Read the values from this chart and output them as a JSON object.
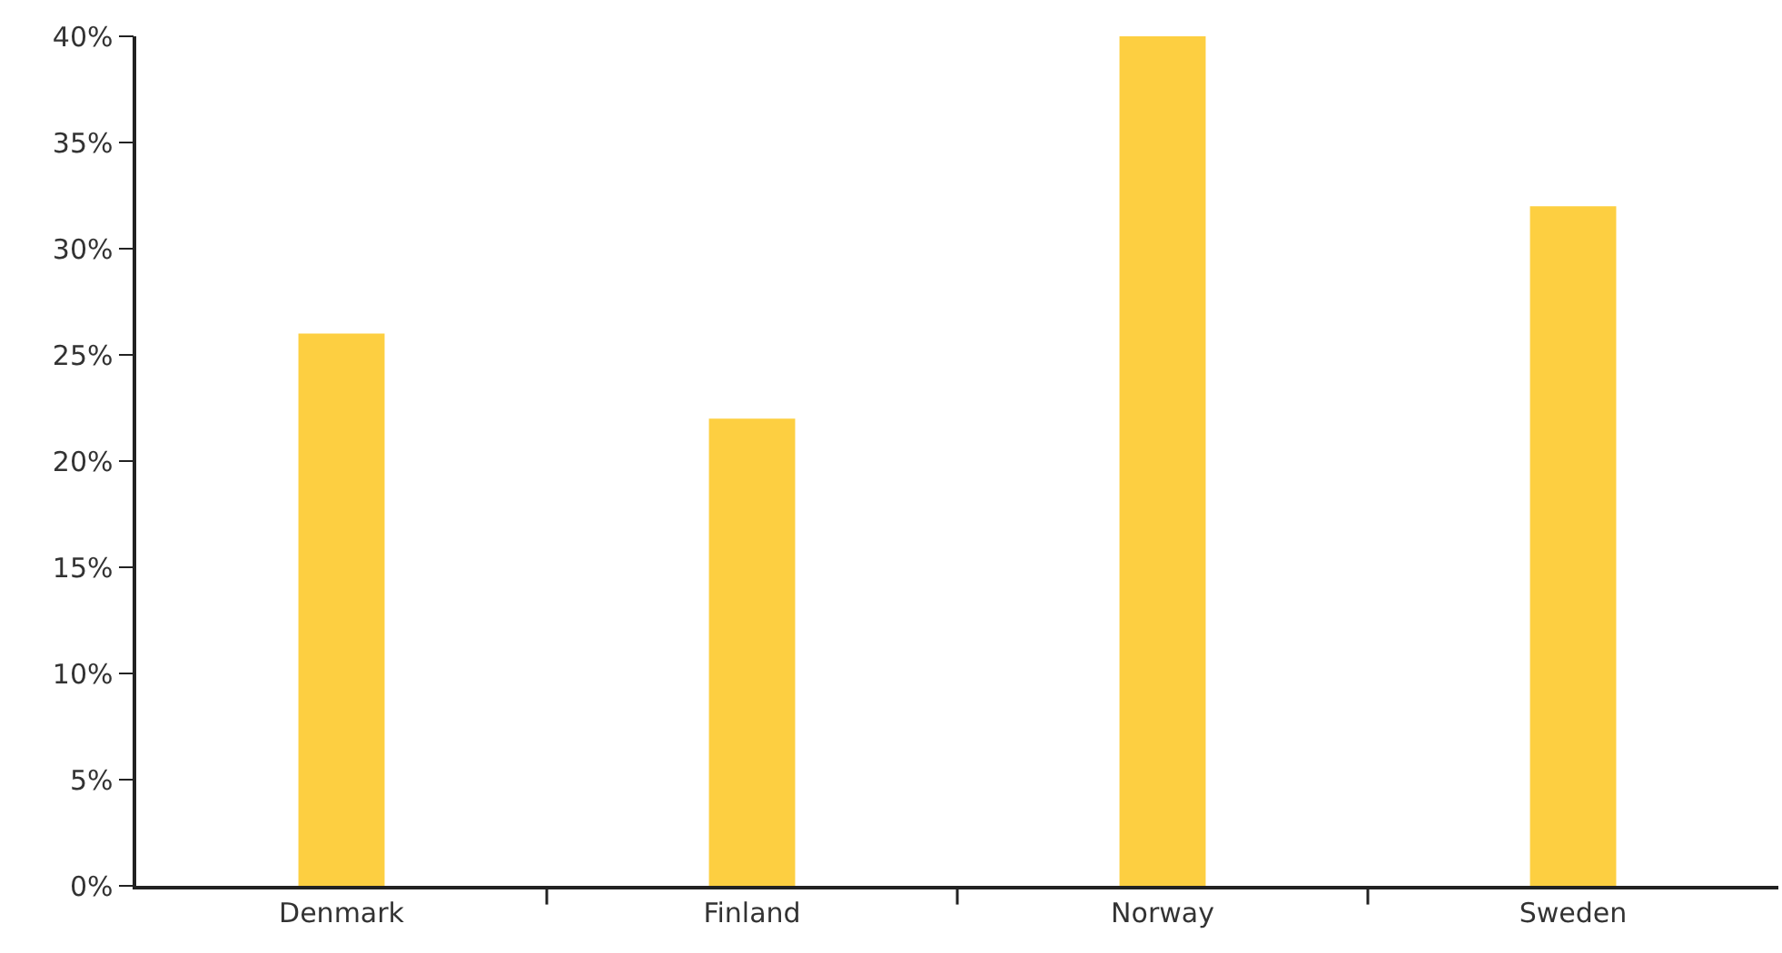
{
  "chart_data": {
    "type": "bar",
    "categories": [
      "Denmark",
      "Finland",
      "Norway",
      "Sweden"
    ],
    "values": [
      26,
      22,
      40,
      32
    ],
    "color": "#fdcf41",
    "ylim": [
      0,
      40
    ],
    "yticks": [
      {
        "value": 0,
        "label": "0%"
      },
      {
        "value": 5,
        "label": "5%"
      },
      {
        "value": 10,
        "label": "10%"
      },
      {
        "value": 15,
        "label": "15%"
      },
      {
        "value": 20,
        "label": "20%"
      },
      {
        "value": 25,
        "label": "25%"
      },
      {
        "value": 30,
        "label": "30%"
      },
      {
        "value": 35,
        "label": "35%"
      },
      {
        "value": 40,
        "label": "40%"
      }
    ],
    "legend": false
  }
}
